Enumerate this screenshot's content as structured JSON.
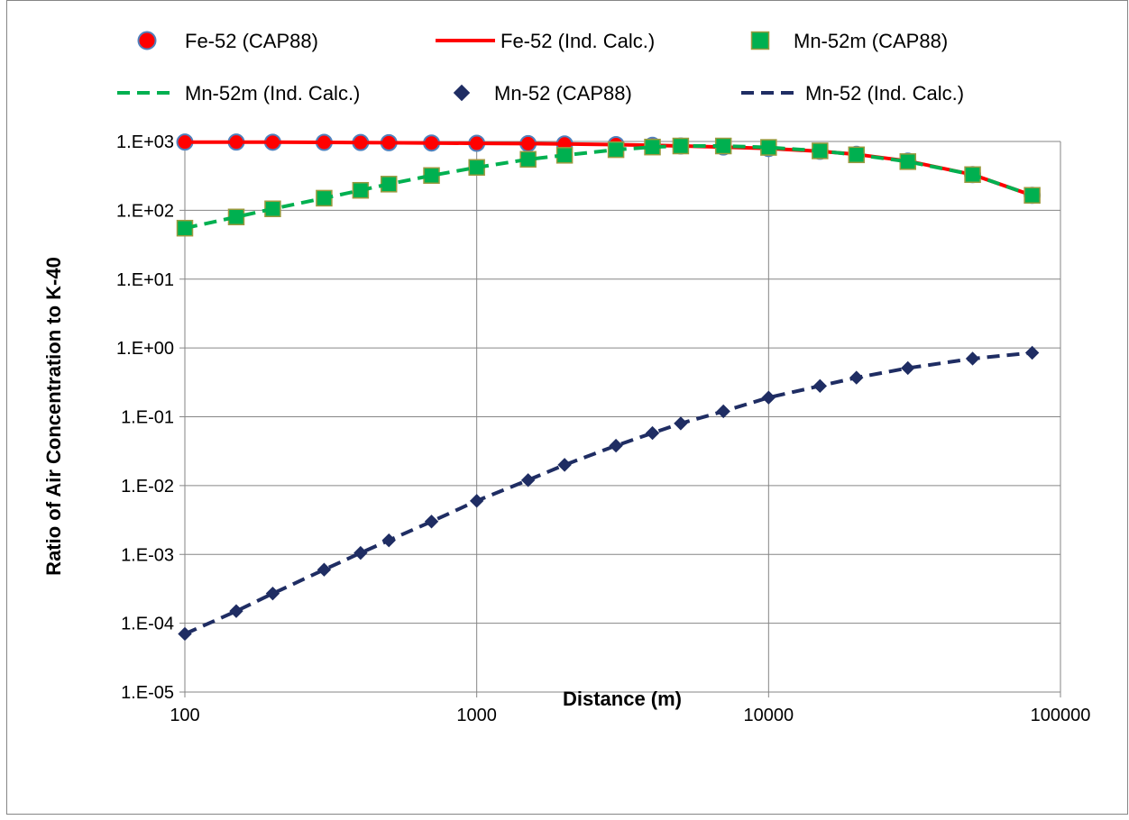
{
  "chart_data": {
    "type": "scatter",
    "xlabel": "Distance (m)",
    "ylabel": "Ratio of Air Concentration to K-40",
    "x_scale": "log",
    "y_scale": "log",
    "xlim": [
      100,
      100000
    ],
    "ylim": [
      1e-05,
      1000
    ],
    "x_ticks": [
      100,
      1000,
      10000,
      100000
    ],
    "x_tick_labels": [
      "100",
      "1000",
      "10000",
      "100000"
    ],
    "y_ticks": [
      1e-05,
      0.0001,
      0.001,
      0.01,
      0.1,
      1,
      10,
      100,
      1000
    ],
    "y_tick_labels": [
      "1.E-05",
      "1.E-04",
      "1.E-03",
      "1.E-02",
      "1.E-01",
      "1.E+00",
      "1.E+01",
      "1.E+02",
      "1.E+03"
    ],
    "grid": true,
    "legend_position": "top",
    "series": [
      {
        "name": "Fe-52 (CAP88)",
        "kind": "markers",
        "marker": "circle",
        "color": "#ff0000",
        "edge_color": "#4f81bd",
        "x": [
          100,
          150,
          200,
          300,
          400,
          500,
          700,
          1000,
          1500,
          2000,
          3000,
          4000,
          5000,
          7000,
          10000,
          15000,
          20000,
          30000,
          50000,
          80000
        ],
        "y": [
          980,
          980,
          975,
          970,
          965,
          960,
          950,
          940,
          930,
          920,
          900,
          880,
          860,
          830,
          790,
          720,
          650,
          520,
          330,
          165
        ]
      },
      {
        "name": "Fe-52 (Ind. Calc.)",
        "kind": "line",
        "dash": "solid",
        "color": "#ff0000",
        "x": [
          100,
          150,
          200,
          300,
          400,
          500,
          700,
          1000,
          1500,
          2000,
          3000,
          4000,
          5000,
          7000,
          10000,
          15000,
          20000,
          30000,
          50000,
          80000
        ],
        "y": [
          980,
          980,
          975,
          970,
          965,
          960,
          950,
          940,
          930,
          920,
          900,
          880,
          860,
          830,
          790,
          720,
          650,
          520,
          330,
          165
        ]
      },
      {
        "name": "Mn-52m (CAP88)",
        "kind": "markers",
        "marker": "square",
        "color": "#00b050",
        "edge_color": "#9c9a3f",
        "x": [
          100,
          150,
          200,
          300,
          400,
          500,
          700,
          1000,
          1500,
          2000,
          3000,
          4000,
          5000,
          7000,
          10000,
          15000,
          20000,
          30000,
          50000,
          80000
        ],
        "y": [
          55,
          80,
          105,
          150,
          195,
          240,
          320,
          420,
          550,
          630,
          760,
          830,
          860,
          860,
          820,
          730,
          640,
          510,
          330,
          165
        ]
      },
      {
        "name": "Mn-52m (Ind. Calc.)",
        "kind": "line",
        "dash": "dashed",
        "color": "#00b050",
        "x": [
          100,
          150,
          200,
          300,
          400,
          500,
          700,
          1000,
          1500,
          2000,
          3000,
          4000,
          5000,
          7000,
          10000,
          15000,
          20000,
          30000,
          50000,
          80000
        ],
        "y": [
          55,
          80,
          105,
          150,
          195,
          240,
          320,
          420,
          550,
          630,
          760,
          830,
          860,
          860,
          820,
          730,
          640,
          510,
          330,
          165
        ]
      },
      {
        "name": "Mn-52 (CAP88)",
        "kind": "markers",
        "marker": "diamond",
        "color": "#1f2d63",
        "edge_color": "#1f2d63",
        "x": [
          100,
          150,
          200,
          300,
          400,
          500,
          700,
          1000,
          1500,
          2000,
          3000,
          4000,
          5000,
          7000,
          10000,
          15000,
          20000,
          30000,
          50000,
          80000
        ],
        "y": [
          7e-05,
          0.00015,
          0.00027,
          0.0006,
          0.00105,
          0.0016,
          0.003,
          0.006,
          0.012,
          0.02,
          0.038,
          0.058,
          0.08,
          0.12,
          0.19,
          0.28,
          0.37,
          0.51,
          0.7,
          0.85
        ]
      },
      {
        "name": "Mn-52 (Ind. Calc.)",
        "kind": "line",
        "dash": "dashed",
        "color": "#1f2d63",
        "x": [
          100,
          150,
          200,
          300,
          400,
          500,
          700,
          1000,
          1500,
          2000,
          3000,
          4000,
          5000,
          7000,
          10000,
          15000,
          20000,
          30000,
          50000,
          80000
        ],
        "y": [
          7e-05,
          0.00015,
          0.00027,
          0.0006,
          0.00105,
          0.0016,
          0.003,
          0.006,
          0.012,
          0.02,
          0.038,
          0.058,
          0.08,
          0.12,
          0.19,
          0.28,
          0.37,
          0.51,
          0.7,
          0.85
        ]
      }
    ]
  }
}
